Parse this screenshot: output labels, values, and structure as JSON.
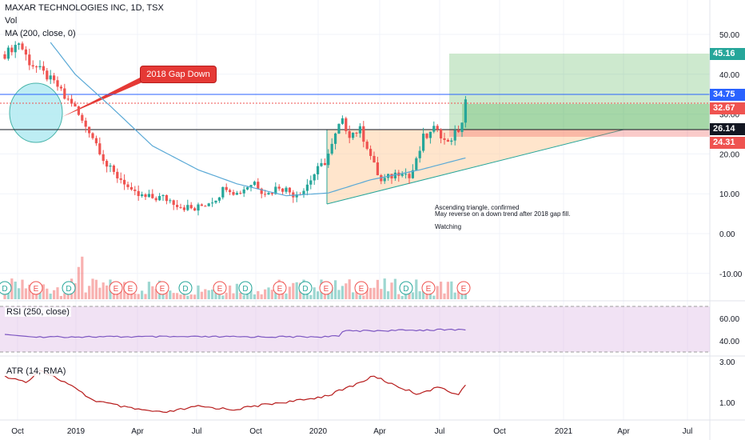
{
  "legend": {
    "symbol": "MAXAR TECHNOLOGIES INC, 1D, TSX",
    "volume": "Vol",
    "ma": "MA (200, close, 0)"
  },
  "panes": {
    "rsi_label": "RSI (250, close)",
    "atr_label": "ATR (14, RMA)"
  },
  "callout": "2018 Gap Down",
  "annotation": {
    "line1": "Ascending triangle, confirmed",
    "line2": "May reverse on a down trend after 2018 gap fill.",
    "line3": "Watching"
  },
  "price_tags": [
    {
      "value": "45.16",
      "color": "#26a69a"
    },
    {
      "value": "34.75",
      "color": "#2962ff"
    },
    {
      "value": "32.67",
      "color": "#ef5350"
    },
    {
      "value": "26.14",
      "color": "#131722"
    },
    {
      "value": "24.31",
      "color": "#ef5350"
    }
  ],
  "colors": {
    "up": "#26a69a",
    "down": "#ef5350",
    "ma": "#5aa9d6",
    "rsi": "#7e57c2",
    "atr": "#b71c1c"
  },
  "chart_data": {
    "type": "candlestick",
    "x_ticks": [
      "Oct",
      "2019",
      "Apr",
      "Jul",
      "Oct",
      "2020",
      "Apr",
      "Jul",
      "Oct",
      "2021",
      "Apr",
      "Jul"
    ],
    "y_ticks": [
      "50.00",
      "40.00",
      "30.00",
      "20.00",
      "10.00",
      "0.00",
      "-10.00"
    ],
    "price_anchors": [
      [
        0,
        45
      ],
      [
        4,
        48
      ],
      [
        7,
        43
      ],
      [
        10,
        41
      ],
      [
        15,
        37
      ],
      [
        17,
        34
      ],
      [
        19,
        33
      ],
      [
        22,
        28
      ],
      [
        24,
        26
      ],
      [
        27,
        21
      ],
      [
        29,
        17
      ],
      [
        31,
        15
      ],
      [
        34,
        13
      ],
      [
        36,
        10
      ],
      [
        40,
        9
      ],
      [
        45,
        9
      ],
      [
        48,
        8
      ],
      [
        50,
        7
      ],
      [
        54,
        6
      ],
      [
        58,
        8
      ],
      [
        60,
        9
      ],
      [
        63,
        12
      ],
      [
        66,
        10
      ],
      [
        69,
        12
      ],
      [
        71,
        13
      ],
      [
        73,
        11
      ],
      [
        75,
        10
      ],
      [
        78,
        12
      ],
      [
        82,
        10
      ],
      [
        85,
        11
      ],
      [
        88,
        15
      ],
      [
        91,
        18
      ],
      [
        93,
        22
      ],
      [
        95,
        27
      ],
      [
        96,
        28
      ],
      [
        98,
        25
      ],
      [
        101,
        26
      ],
      [
        103,
        22
      ],
      [
        105,
        17
      ],
      [
        107,
        13
      ],
      [
        109,
        14
      ],
      [
        111,
        15
      ],
      [
        113,
        16
      ],
      [
        115,
        14
      ],
      [
        117,
        18
      ],
      [
        119,
        24
      ],
      [
        121,
        25
      ],
      [
        123,
        27
      ],
      [
        125,
        23
      ],
      [
        127,
        24
      ],
      [
        129,
        26
      ],
      [
        130,
        28
      ],
      [
        131,
        33
      ]
    ],
    "ma_anchors": [
      [
        13,
        48
      ],
      [
        20,
        40
      ],
      [
        30,
        32
      ],
      [
        42,
        22
      ],
      [
        55,
        16
      ],
      [
        66,
        12.5
      ],
      [
        80,
        9.5
      ],
      [
        92,
        10.2
      ],
      [
        104,
        13.5
      ],
      [
        118,
        16
      ],
      [
        131,
        19
      ]
    ],
    "rsi": {
      "y_ticks": [
        "60.00",
        "40.00"
      ],
      "upper": 70,
      "lower": 30
    },
    "atr": {
      "y_ticks": [
        "3.00",
        "1.00"
      ]
    },
    "earnings_markers": [
      "D",
      "E",
      "D",
      "E",
      "E",
      "E",
      "D",
      "E",
      "D",
      "E",
      "D",
      "E",
      "E",
      "D",
      "E",
      "E"
    ],
    "levels": {
      "target": 45.16,
      "entry": 34.75,
      "gap": 32.67,
      "resistance": 26.14,
      "stop": 24.31
    }
  }
}
